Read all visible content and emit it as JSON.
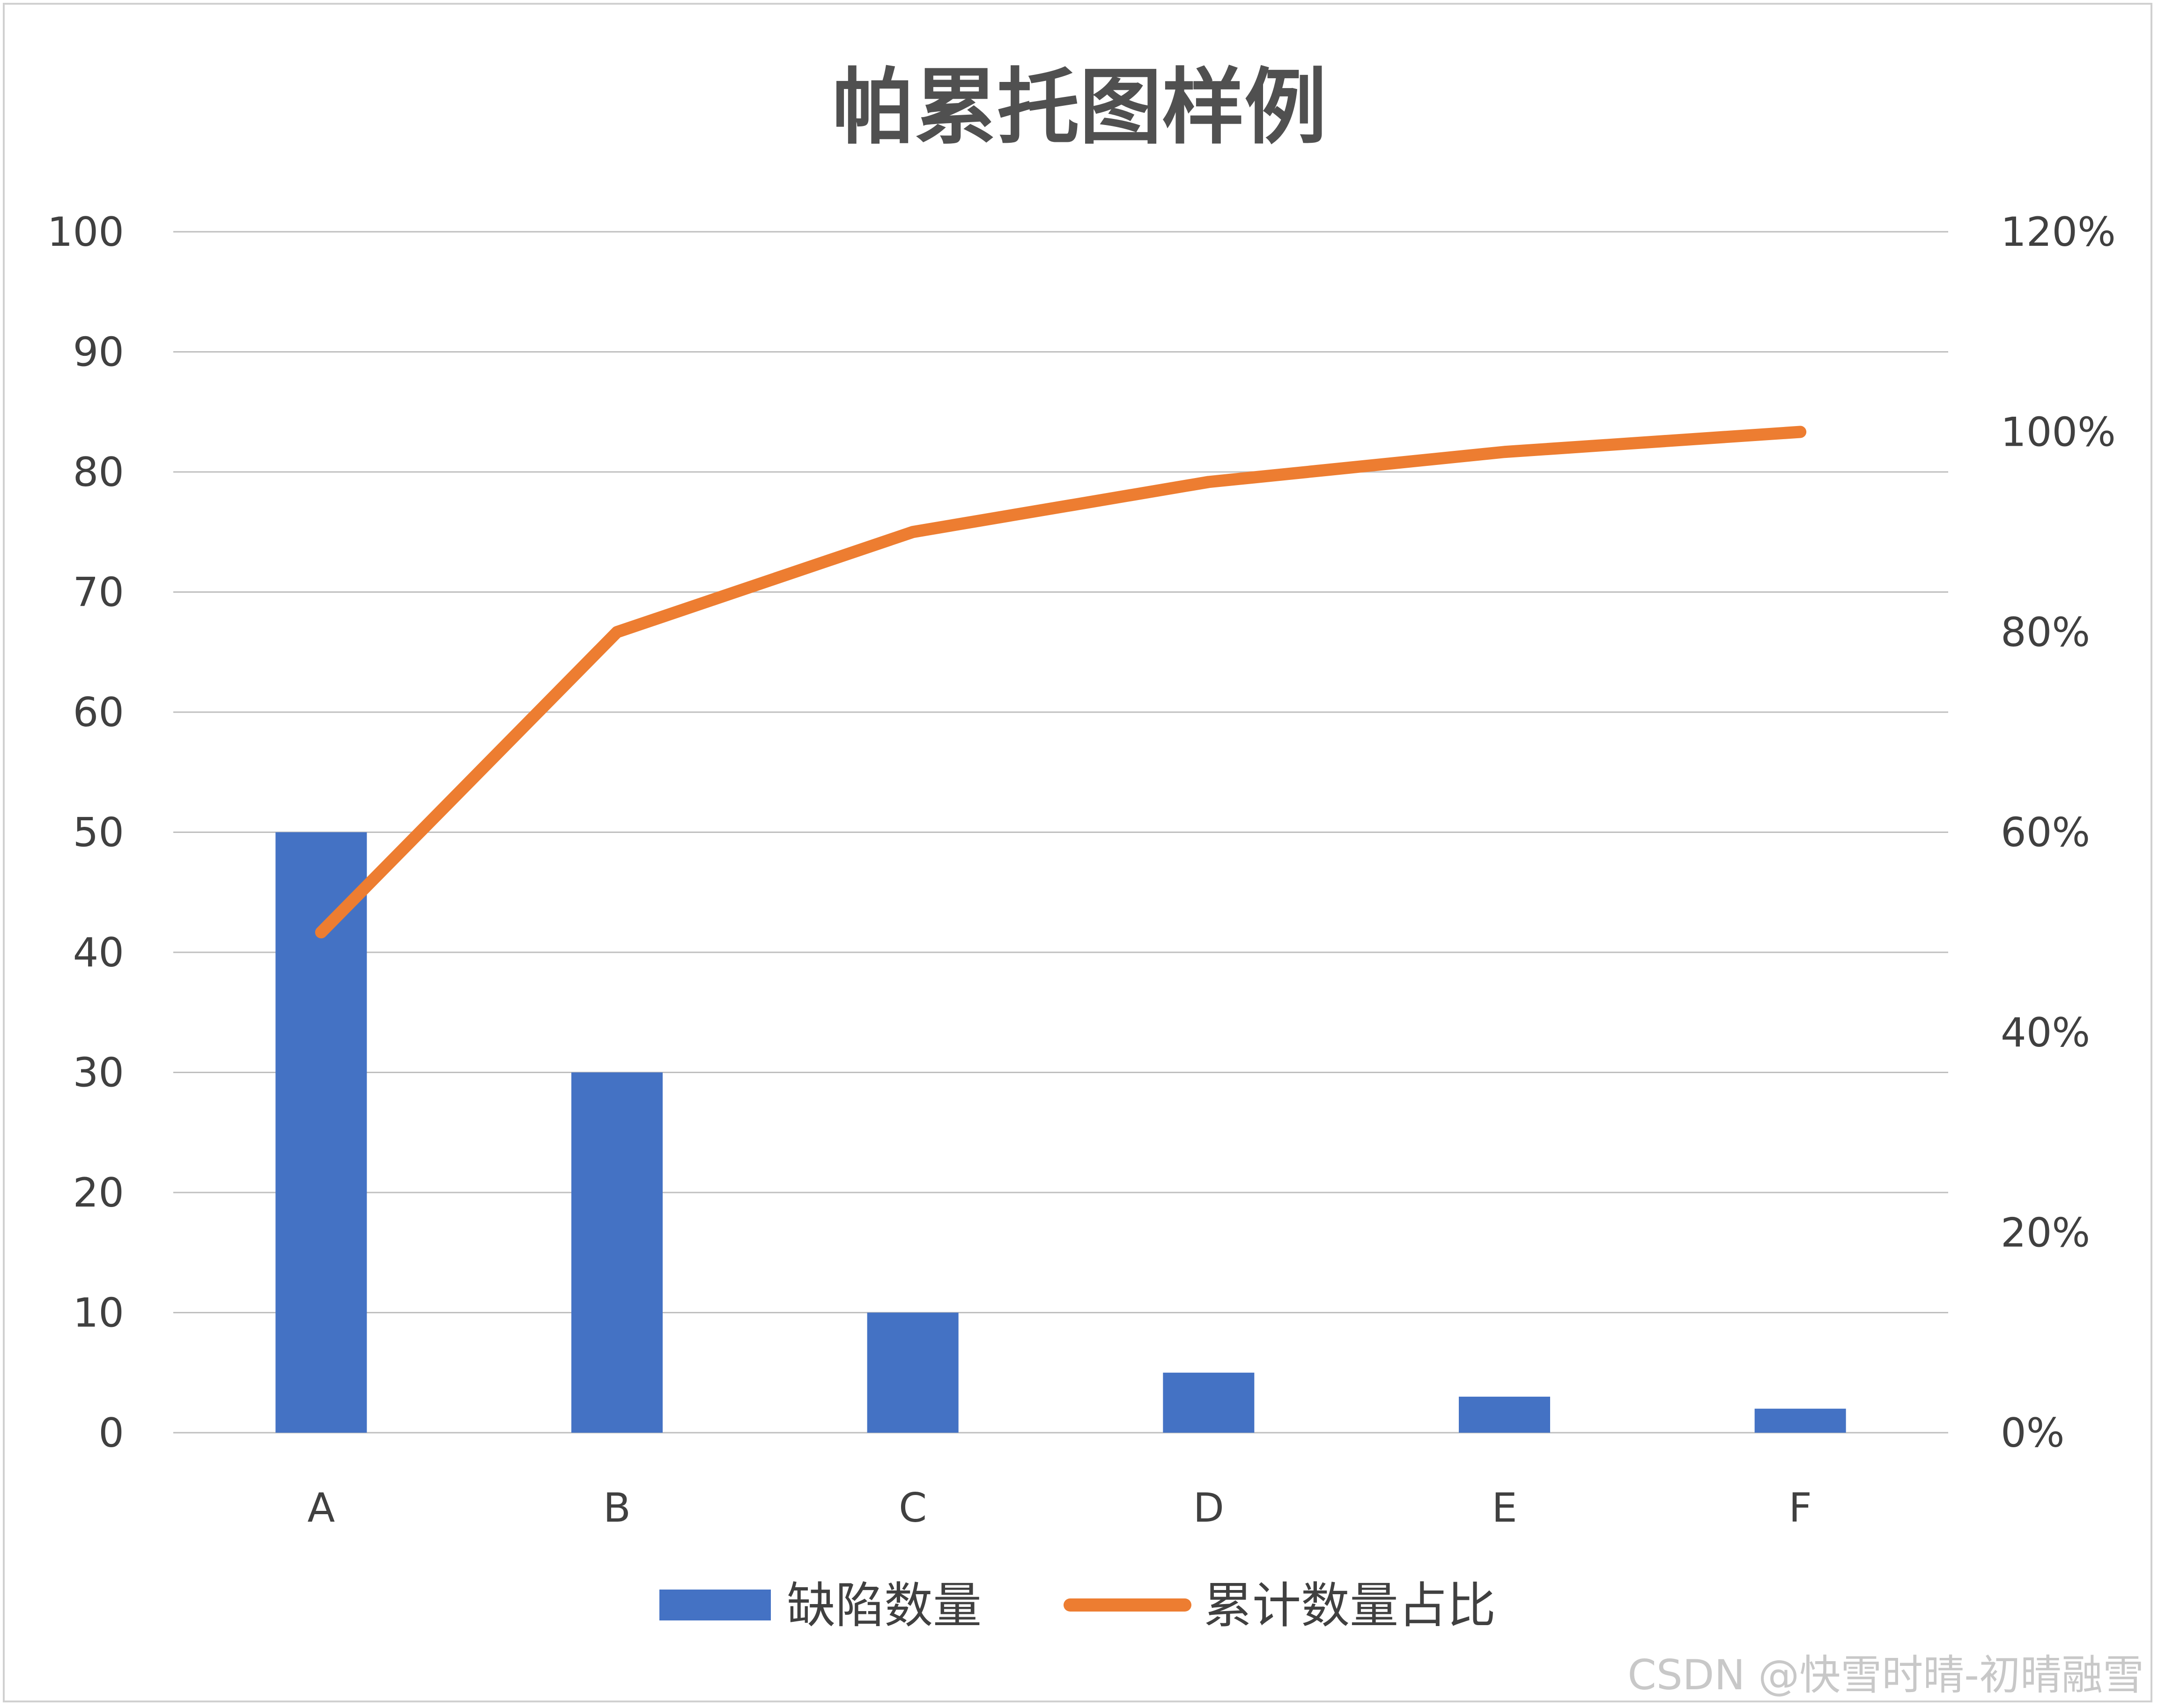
{
  "chart_data": {
    "type": "bar",
    "title": "帕累托图样例",
    "categories": [
      "A",
      "B",
      "C",
      "D",
      "E",
      "F"
    ],
    "series": [
      {
        "name": "缺陷数量",
        "type": "bar",
        "axis": "left",
        "color": "#4472C4",
        "values": [
          50,
          30,
          10,
          5,
          3,
          2
        ]
      },
      {
        "name": "累计数量占比",
        "type": "line",
        "axis": "right",
        "color": "#ED7D31",
        "values": [
          50,
          80,
          90,
          95,
          98,
          100
        ],
        "unit": "%"
      }
    ],
    "left_axis": {
      "ylim": [
        0,
        100
      ],
      "ticks": [
        "0",
        "10",
        "20",
        "30",
        "40",
        "50",
        "60",
        "70",
        "80",
        "90",
        "100"
      ]
    },
    "right_axis": {
      "ylim": [
        0,
        120
      ],
      "ticks": [
        "0%",
        "20%",
        "40%",
        "60%",
        "80%",
        "100%",
        "120%"
      ]
    },
    "xlabel": "",
    "ylabel": "",
    "grid": true,
    "legend": "bottom",
    "gridline_color": "#bfbfbf"
  },
  "watermark": "CSDN @快雪时晴-初晴融雪"
}
